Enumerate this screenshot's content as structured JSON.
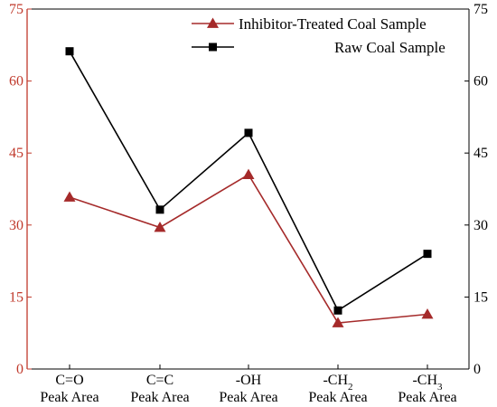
{
  "chart_data": {
    "type": "line",
    "categories": [
      {
        "main": "C=O",
        "sub": "",
        "line2": "Peak Area"
      },
      {
        "main": "C=C",
        "sub": "",
        "line2": "Peak Area"
      },
      {
        "main": "-OH",
        "sub": "",
        "line2": "Peak Area"
      },
      {
        "main": "-CH",
        "sub": "2",
        "line2": "Peak Area"
      },
      {
        "main": "-CH",
        "sub": "3",
        "line2": "Peak Area"
      }
    ],
    "series": [
      {
        "name": "Inhibitor-Treated Coal Sample",
        "values": [
          35.8,
          29.5,
          40.5,
          9.6,
          11.4
        ],
        "color": "#a52a2a",
        "marker": "triangle"
      },
      {
        "name": "Raw Coal Sample",
        "values": [
          66.2,
          33.2,
          49.2,
          12.2,
          24.0
        ],
        "color": "#000000",
        "marker": "square"
      }
    ],
    "ylim": [
      0,
      75
    ],
    "yticks": [
      "0",
      "15",
      "30",
      "45",
      "60",
      "75"
    ],
    "left_axis_color": "#c0392b",
    "right_axis_color": "#000000",
    "legend_position": "top-right",
    "grid": false
  }
}
